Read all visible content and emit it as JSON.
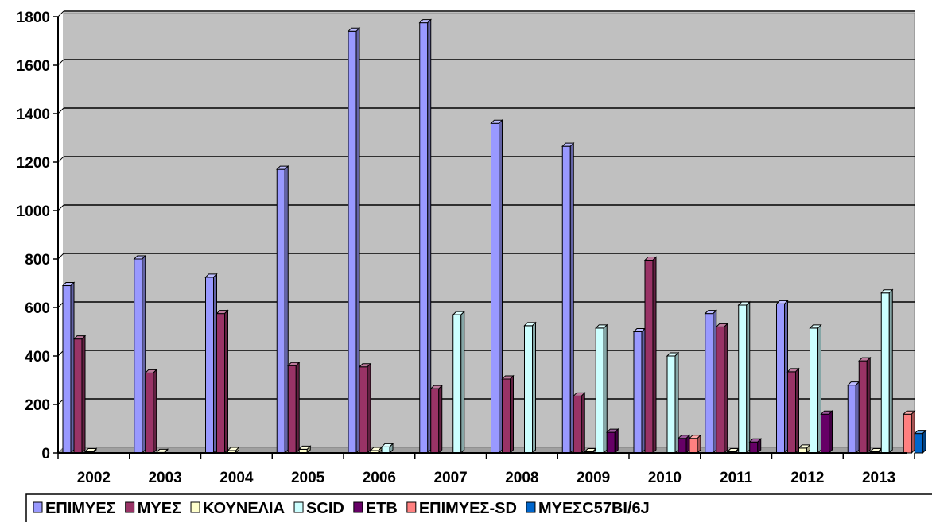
{
  "chart_data": {
    "type": "bar",
    "title": "",
    "xlabel": "",
    "ylabel": "",
    "ylim": [
      0,
      1800
    ],
    "yticks": [
      0,
      200,
      400,
      600,
      800,
      1000,
      1200,
      1400,
      1600,
      1800
    ],
    "grid": true,
    "legend_position": "bottom",
    "categories": [
      "2002",
      "2003",
      "2004",
      "2005",
      "2006",
      "2007",
      "2008",
      "2009",
      "2010",
      "2011",
      "2012",
      "2013"
    ],
    "series": [
      {
        "name": "ΕΠΙΜΥΕΣ",
        "color": "#9999ff",
        "values": [
          690,
          800,
          725,
          1170,
          1740,
          1775,
          1360,
          1265,
          500,
          575,
          615,
          280
        ]
      },
      {
        "name": "ΜΥΕΣ",
        "color": "#993366",
        "values": [
          470,
          330,
          575,
          360,
          355,
          265,
          305,
          235,
          795,
          520,
          335,
          380
        ]
      },
      {
        "name": "ΚΟΥΝΕΛΙΑ",
        "color": "#ffffcc",
        "values": [
          5,
          2,
          10,
          15,
          10,
          0,
          0,
          5,
          0,
          5,
          20,
          5
        ]
      },
      {
        "name": "SCID",
        "color": "#ccffff",
        "values": [
          0,
          0,
          0,
          0,
          25,
          570,
          525,
          515,
          400,
          610,
          515,
          660
        ]
      },
      {
        "name": "ETB",
        "color": "#660066",
        "values": [
          0,
          0,
          0,
          0,
          0,
          0,
          0,
          85,
          60,
          45,
          160,
          0
        ]
      },
      {
        "name": "ΕΠΙΜΥΕΣ-SD",
        "color": "#ff8080",
        "values": [
          0,
          0,
          0,
          0,
          0,
          0,
          0,
          0,
          60,
          0,
          0,
          160
        ]
      },
      {
        "name": "ΜΥΕΣC57BI/6J",
        "color": "#0066cc",
        "values": [
          0,
          0,
          0,
          0,
          0,
          0,
          0,
          0,
          0,
          0,
          0,
          80
        ]
      }
    ]
  }
}
